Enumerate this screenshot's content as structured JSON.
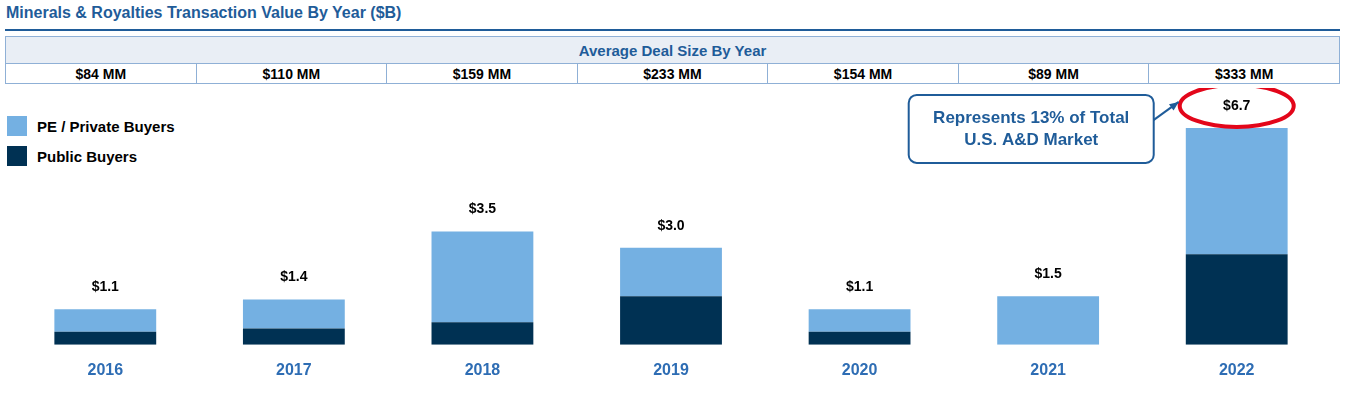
{
  "chart_data": {
    "type": "bar",
    "stacked": true,
    "title": "Minerals & Royalties Transaction Value By Year ($B)",
    "categories": [
      "2016",
      "2017",
      "2018",
      "2019",
      "2020",
      "2021",
      "2022"
    ],
    "series": [
      {
        "name": "PE / Private Buyers",
        "color": "#74b0e2",
        "values": [
          0.7,
          0.9,
          2.8,
          1.5,
          0.7,
          1.5,
          3.9
        ]
      },
      {
        "name": "Public Buyers",
        "color": "#003153",
        "values": [
          0.4,
          0.5,
          0.7,
          1.5,
          0.4,
          0,
          2.8
        ]
      }
    ],
    "totals": [
      1.1,
      1.4,
      3.5,
      3.0,
      1.1,
      1.5,
      6.7
    ],
    "total_labels": [
      "$1.1",
      "$1.4",
      "$3.5",
      "$3.0",
      "$1.1",
      "$1.5",
      "$6.7"
    ],
    "table": {
      "title": "Average Deal Size By Year",
      "cells": [
        "$84 MM",
        "$110 MM",
        "$159 MM",
        "$233 MM",
        "$154 MM",
        "$89 MM",
        "$333 MM"
      ]
    },
    "annotation": {
      "category": "2022",
      "text": [
        "Represents 13% of Total",
        "U.S. A&D Market"
      ],
      "color": "#e3061a"
    },
    "ylim": [
      0,
      7.5
    ],
    "yticks": [
      0,
      7.5
    ],
    "tick_labels": "x",
    "grid": false,
    "legend": "upper left"
  }
}
